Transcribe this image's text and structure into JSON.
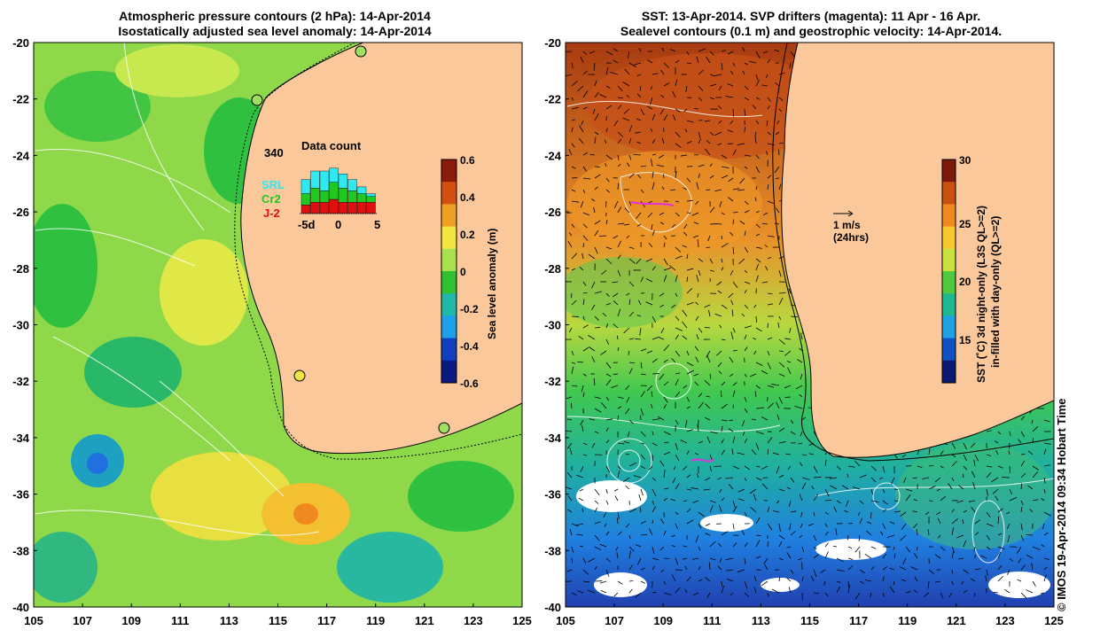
{
  "left_panel": {
    "title_line1": "Atmospheric pressure contours (2 hPa): 14-Apr-2014",
    "title_line2": "Isostatically adjusted sea level anomaly: 14-Apr-2014",
    "colorbar": {
      "label": "Sea level anomaly (m)",
      "ticks": [
        "0.6",
        "0.4",
        "0.2",
        "0",
        "-0.2",
        "-0.4",
        "-0.6"
      ],
      "colors": [
        "#8b1a0a",
        "#d4500e",
        "#f0a020",
        "#f2e640",
        "#a8e050",
        "#30c030",
        "#20b8a8",
        "#20a0e8",
        "#1040c0",
        "#0a1a80"
      ]
    },
    "inset": {
      "title": "Data count",
      "max_label": "340",
      "x_labels": [
        "-5d",
        "0",
        "5"
      ],
      "legend": [
        {
          "name": "SRL",
          "color": "#30e8f0"
        },
        {
          "name": "Cr2",
          "color": "#20c820"
        },
        {
          "name": "J-2",
          "color": "#e01010"
        }
      ],
      "bars": {
        "srl": [
          0.25,
          0.3,
          0.35,
          0.25,
          0.25,
          0.2,
          0.12,
          0.05
        ],
        "cr2": [
          0.2,
          0.25,
          0.2,
          0.3,
          0.25,
          0.2,
          0.15,
          0.1
        ],
        "j2": [
          0.15,
          0.2,
          0.2,
          0.25,
          0.2,
          0.2,
          0.2,
          0.2
        ]
      }
    }
  },
  "right_panel": {
    "title_line1": "SST: 13-Apr-2014. SVP drifters (magenta): 11 Apr - 16 Apr.",
    "title_line2": "Sealevel contours (0.1 m) and geostrophic velocity: 14-Apr-2014.",
    "colorbar": {
      "label_line1": "SST (˚C)  3d night-only (L3S QL>=2)",
      "label_line2": "in-filled with day-only (QL>=2)",
      "ticks": [
        "30",
        "25",
        "20",
        "15"
      ],
      "colors": [
        "#7a1a08",
        "#c85010",
        "#f08a20",
        "#f5c830",
        "#c8e040",
        "#50c840",
        "#20b890",
        "#20a0e0",
        "#1050c0",
        "#0a1a70"
      ]
    },
    "scale_arrow": {
      "label_line1": "1 m/s",
      "label_line2": "(24hrs)"
    }
  },
  "axes": {
    "lat_labels": [
      "-20",
      "-22",
      "-24",
      "-26",
      "-28",
      "-30",
      "-32",
      "-34",
      "-36",
      "-38",
      "-40"
    ],
    "lon_labels": [
      "105",
      "107",
      "109",
      "111",
      "113",
      "115",
      "117",
      "119",
      "121",
      "123",
      "125"
    ]
  },
  "land_color": "#fac89a",
  "copyright": "© IMOS 19-Apr-2014 09:34 Hobart Time"
}
